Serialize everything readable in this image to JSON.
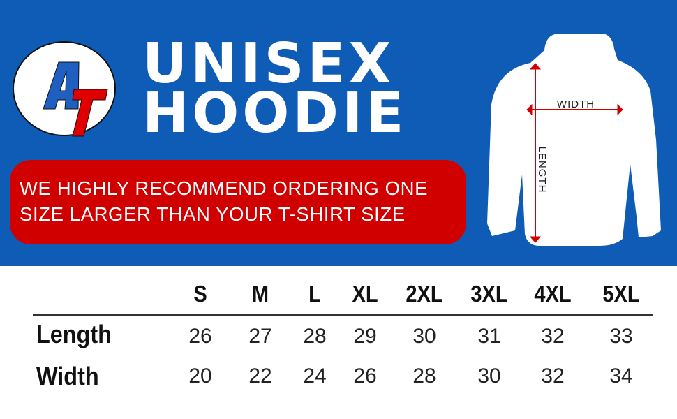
{
  "brand": {
    "logo_text": "AT",
    "logo_colors": {
      "A": "#1e5fc0",
      "T": "#e00000"
    }
  },
  "colors": {
    "background": "#0f5cb6",
    "banner": "#d00000",
    "arrows": "#d00000"
  },
  "title": {
    "line1": "UNISEX",
    "line2": "HOODIE"
  },
  "banner": {
    "line1": "WE HIGHLY RECOMMEND ORDERING ONE",
    "line2": "SIZE LARGER THAN YOUR T-SHIRT SIZE"
  },
  "diagram": {
    "width_label": "WIDTH",
    "length_label": "LENGTH"
  },
  "table": {
    "sizes": [
      "S",
      "M",
      "L",
      "XL",
      "2XL",
      "3XL",
      "4XL",
      "5XL"
    ],
    "rows": [
      {
        "label": "Length",
        "values": [
          "26",
          "27",
          "28",
          "29",
          "30",
          "31",
          "32",
          "33"
        ]
      },
      {
        "label": "Width",
        "values": [
          "20",
          "22",
          "24",
          "26",
          "28",
          "30",
          "32",
          "34"
        ]
      }
    ]
  }
}
